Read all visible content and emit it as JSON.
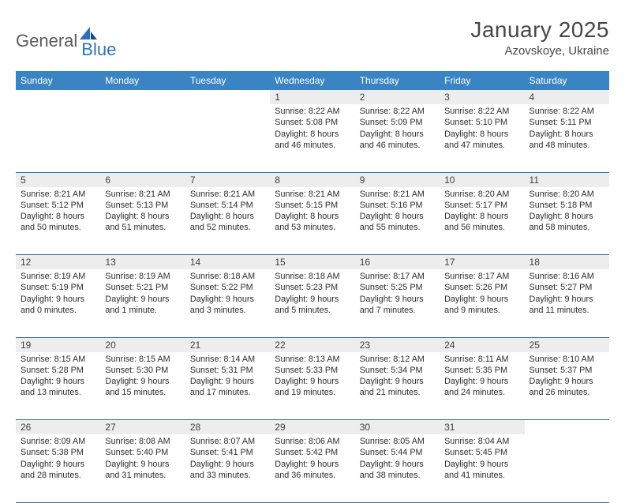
{
  "brand": {
    "general": "General",
    "blue": "Blue"
  },
  "title": "January 2025",
  "location": "Azovskoye, Ukraine",
  "colors": {
    "header_bg": "#3b84c4",
    "header_fg": "#ffffff",
    "daynum_bg": "#ededed",
    "row_border": "#3b6fa0",
    "logo_blue": "#2a72b5",
    "logo_gray": "#5b5b5b"
  },
  "fonts": {
    "title_size": 28,
    "location_size": 15,
    "dayhdr_size": 12,
    "cell_size": 10.8
  },
  "day_headers": [
    "Sunday",
    "Monday",
    "Tuesday",
    "Wednesday",
    "Thursday",
    "Friday",
    "Saturday"
  ],
  "weeks": [
    [
      {
        "n": "",
        "lines": []
      },
      {
        "n": "",
        "lines": []
      },
      {
        "n": "",
        "lines": []
      },
      {
        "n": "1",
        "lines": [
          "Sunrise: 8:22 AM",
          "Sunset: 5:08 PM",
          "Daylight: 8 hours",
          "and 46 minutes."
        ]
      },
      {
        "n": "2",
        "lines": [
          "Sunrise: 8:22 AM",
          "Sunset: 5:09 PM",
          "Daylight: 8 hours",
          "and 46 minutes."
        ]
      },
      {
        "n": "3",
        "lines": [
          "Sunrise: 8:22 AM",
          "Sunset: 5:10 PM",
          "Daylight: 8 hours",
          "and 47 minutes."
        ]
      },
      {
        "n": "4",
        "lines": [
          "Sunrise: 8:22 AM",
          "Sunset: 5:11 PM",
          "Daylight: 8 hours",
          "and 48 minutes."
        ]
      }
    ],
    [
      {
        "n": "5",
        "lines": [
          "Sunrise: 8:21 AM",
          "Sunset: 5:12 PM",
          "Daylight: 8 hours",
          "and 50 minutes."
        ]
      },
      {
        "n": "6",
        "lines": [
          "Sunrise: 8:21 AM",
          "Sunset: 5:13 PM",
          "Daylight: 8 hours",
          "and 51 minutes."
        ]
      },
      {
        "n": "7",
        "lines": [
          "Sunrise: 8:21 AM",
          "Sunset: 5:14 PM",
          "Daylight: 8 hours",
          "and 52 minutes."
        ]
      },
      {
        "n": "8",
        "lines": [
          "Sunrise: 8:21 AM",
          "Sunset: 5:15 PM",
          "Daylight: 8 hours",
          "and 53 minutes."
        ]
      },
      {
        "n": "9",
        "lines": [
          "Sunrise: 8:21 AM",
          "Sunset: 5:16 PM",
          "Daylight: 8 hours",
          "and 55 minutes."
        ]
      },
      {
        "n": "10",
        "lines": [
          "Sunrise: 8:20 AM",
          "Sunset: 5:17 PM",
          "Daylight: 8 hours",
          "and 56 minutes."
        ]
      },
      {
        "n": "11",
        "lines": [
          "Sunrise: 8:20 AM",
          "Sunset: 5:18 PM",
          "Daylight: 8 hours",
          "and 58 minutes."
        ]
      }
    ],
    [
      {
        "n": "12",
        "lines": [
          "Sunrise: 8:19 AM",
          "Sunset: 5:19 PM",
          "Daylight: 9 hours",
          "and 0 minutes."
        ]
      },
      {
        "n": "13",
        "lines": [
          "Sunrise: 8:19 AM",
          "Sunset: 5:21 PM",
          "Daylight: 9 hours",
          "and 1 minute."
        ]
      },
      {
        "n": "14",
        "lines": [
          "Sunrise: 8:18 AM",
          "Sunset: 5:22 PM",
          "Daylight: 9 hours",
          "and 3 minutes."
        ]
      },
      {
        "n": "15",
        "lines": [
          "Sunrise: 8:18 AM",
          "Sunset: 5:23 PM",
          "Daylight: 9 hours",
          "and 5 minutes."
        ]
      },
      {
        "n": "16",
        "lines": [
          "Sunrise: 8:17 AM",
          "Sunset: 5:25 PM",
          "Daylight: 9 hours",
          "and 7 minutes."
        ]
      },
      {
        "n": "17",
        "lines": [
          "Sunrise: 8:17 AM",
          "Sunset: 5:26 PM",
          "Daylight: 9 hours",
          "and 9 minutes."
        ]
      },
      {
        "n": "18",
        "lines": [
          "Sunrise: 8:16 AM",
          "Sunset: 5:27 PM",
          "Daylight: 9 hours",
          "and 11 minutes."
        ]
      }
    ],
    [
      {
        "n": "19",
        "lines": [
          "Sunrise: 8:15 AM",
          "Sunset: 5:28 PM",
          "Daylight: 9 hours",
          "and 13 minutes."
        ]
      },
      {
        "n": "20",
        "lines": [
          "Sunrise: 8:15 AM",
          "Sunset: 5:30 PM",
          "Daylight: 9 hours",
          "and 15 minutes."
        ]
      },
      {
        "n": "21",
        "lines": [
          "Sunrise: 8:14 AM",
          "Sunset: 5:31 PM",
          "Daylight: 9 hours",
          "and 17 minutes."
        ]
      },
      {
        "n": "22",
        "lines": [
          "Sunrise: 8:13 AM",
          "Sunset: 5:33 PM",
          "Daylight: 9 hours",
          "and 19 minutes."
        ]
      },
      {
        "n": "23",
        "lines": [
          "Sunrise: 8:12 AM",
          "Sunset: 5:34 PM",
          "Daylight: 9 hours",
          "and 21 minutes."
        ]
      },
      {
        "n": "24",
        "lines": [
          "Sunrise: 8:11 AM",
          "Sunset: 5:35 PM",
          "Daylight: 9 hours",
          "and 24 minutes."
        ]
      },
      {
        "n": "25",
        "lines": [
          "Sunrise: 8:10 AM",
          "Sunset: 5:37 PM",
          "Daylight: 9 hours",
          "and 26 minutes."
        ]
      }
    ],
    [
      {
        "n": "26",
        "lines": [
          "Sunrise: 8:09 AM",
          "Sunset: 5:38 PM",
          "Daylight: 9 hours",
          "and 28 minutes."
        ]
      },
      {
        "n": "27",
        "lines": [
          "Sunrise: 8:08 AM",
          "Sunset: 5:40 PM",
          "Daylight: 9 hours",
          "and 31 minutes."
        ]
      },
      {
        "n": "28",
        "lines": [
          "Sunrise: 8:07 AM",
          "Sunset: 5:41 PM",
          "Daylight: 9 hours",
          "and 33 minutes."
        ]
      },
      {
        "n": "29",
        "lines": [
          "Sunrise: 8:06 AM",
          "Sunset: 5:42 PM",
          "Daylight: 9 hours",
          "and 36 minutes."
        ]
      },
      {
        "n": "30",
        "lines": [
          "Sunrise: 8:05 AM",
          "Sunset: 5:44 PM",
          "Daylight: 9 hours",
          "and 38 minutes."
        ]
      },
      {
        "n": "31",
        "lines": [
          "Sunrise: 8:04 AM",
          "Sunset: 5:45 PM",
          "Daylight: 9 hours",
          "and 41 minutes."
        ]
      },
      {
        "n": "",
        "lines": []
      }
    ]
  ]
}
